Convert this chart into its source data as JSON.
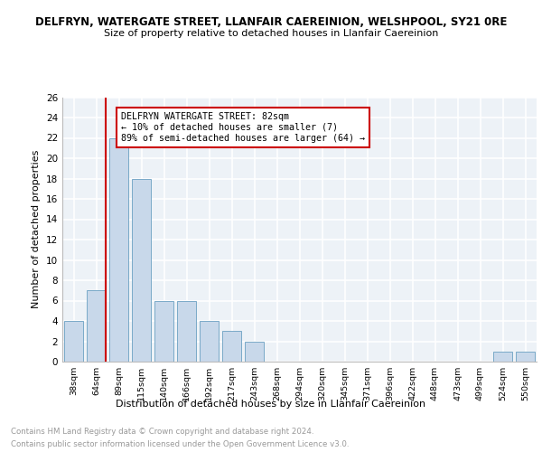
{
  "title1": "DELFRYN, WATERGATE STREET, LLANFAIR CAEREINION, WELSHPOOL, SY21 0RE",
  "title2": "Size of property relative to detached houses in Llanfair Caereinion",
  "xlabel": "Distribution of detached houses by size in Llanfair Caereinion",
  "ylabel": "Number of detached properties",
  "categories": [
    "38sqm",
    "64sqm",
    "89sqm",
    "115sqm",
    "140sqm",
    "166sqm",
    "192sqm",
    "217sqm",
    "243sqm",
    "268sqm",
    "294sqm",
    "320sqm",
    "345sqm",
    "371sqm",
    "396sqm",
    "422sqm",
    "448sqm",
    "473sqm",
    "499sqm",
    "524sqm",
    "550sqm"
  ],
  "values": [
    4,
    7,
    22,
    18,
    6,
    6,
    4,
    3,
    2,
    0,
    0,
    0,
    0,
    0,
    0,
    0,
    0,
    0,
    0,
    1,
    1
  ],
  "bar_color": "#c8d8ea",
  "bar_edge_color": "#7aaac8",
  "property_line_color": "#cc0000",
  "annotation_text": "DELFRYN WATERGATE STREET: 82sqm\n← 10% of detached houses are smaller (7)\n89% of semi-detached houses are larger (64) →",
  "annotation_box_color": "#ffffff",
  "annotation_box_edge": "#cc0000",
  "ylim": [
    0,
    26
  ],
  "yticks": [
    0,
    2,
    4,
    6,
    8,
    10,
    12,
    14,
    16,
    18,
    20,
    22,
    24,
    26
  ],
  "footer1": "Contains HM Land Registry data © Crown copyright and database right 2024.",
  "footer2": "Contains public sector information licensed under the Open Government Licence v3.0.",
  "bg_color": "#edf2f7",
  "grid_color": "#ffffff"
}
